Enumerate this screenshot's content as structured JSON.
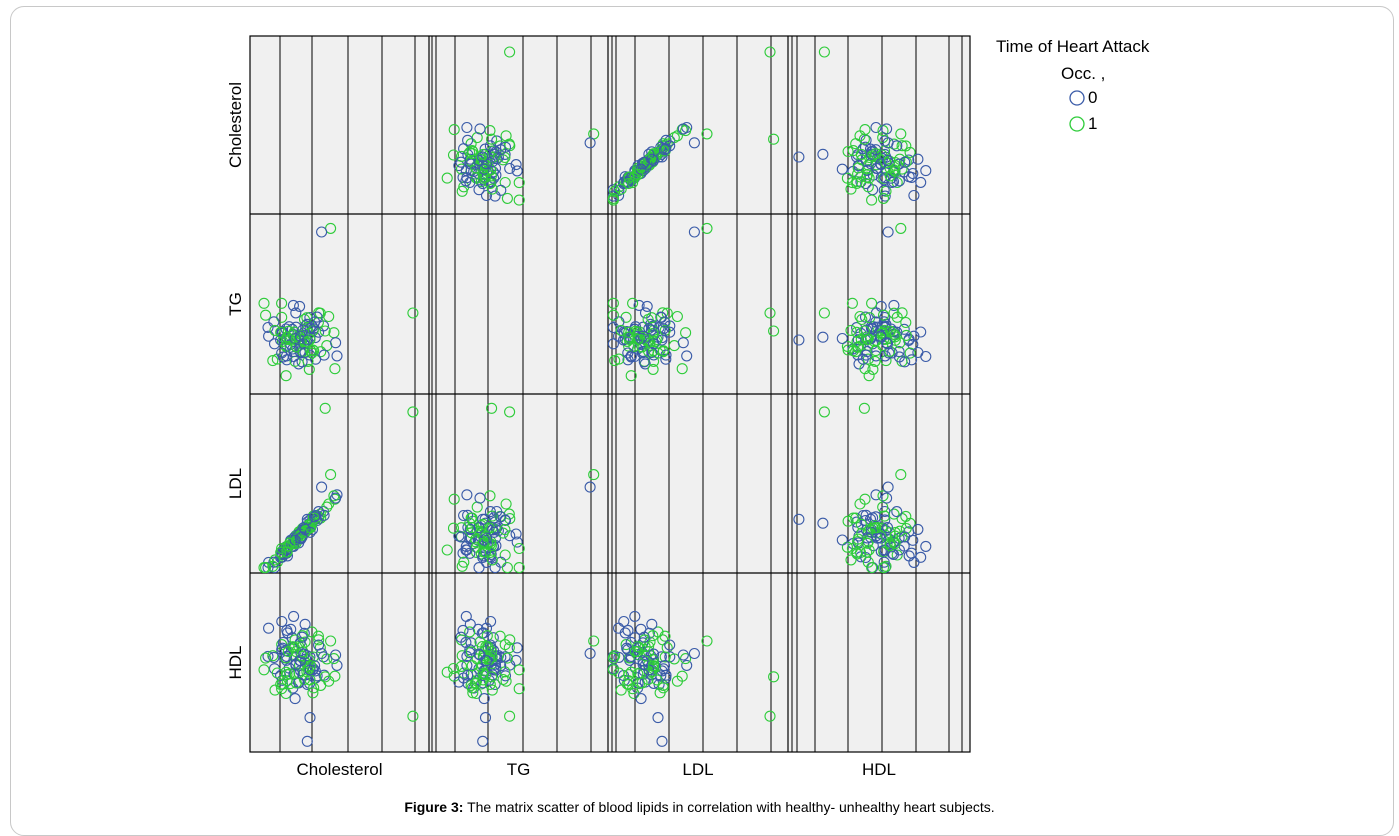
{
  "chart_data": {
    "type": "scatter",
    "variables": [
      "Cholesterol",
      "TG",
      "LDL",
      "HDL"
    ],
    "grid": true,
    "legend_position": "top-right",
    "legend": {
      "title_line1": "Time of Heart Attack",
      "title_line2": "Occ. ,",
      "groups": [
        {
          "label": "0",
          "color": "#3a5ba8"
        },
        {
          "label": "1",
          "color": "#2ecc3a"
        }
      ]
    },
    "series_colors": {
      "0": "#3a5ba8",
      "1": "#2ecc3a"
    },
    "outliers": {
      "Cholesterol": 0.91,
      "TG": 0.92,
      "LDL": 0.92,
      "HDL": 0.06
    }
  },
  "caption": {
    "label": "Figure 3:",
    "text": " The matrix scatter of blood lipids in correlation with healthy- unhealthy heart subjects."
  }
}
